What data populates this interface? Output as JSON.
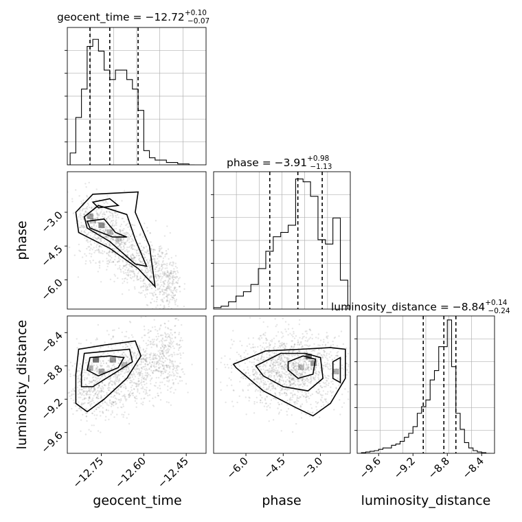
{
  "chart_data": {
    "type": "corner",
    "parameters": [
      "geocent_time",
      "phase",
      "luminosity_distance"
    ],
    "panels": [
      {
        "kind": "histogram",
        "parameter": "geocent_time",
        "title": {
          "name": "geocent_time",
          "median": "−12.72",
          "upper": "+0.10",
          "lower": "−0.07"
        },
        "xlim": [
          -12.87,
          -12.38
        ],
        "bin_edges": [
          -12.88,
          -12.86,
          -12.84,
          -12.82,
          -12.8,
          -12.78,
          -12.76,
          -12.74,
          -12.72,
          -12.7,
          -12.68,
          -12.66,
          -12.64,
          -12.62,
          -12.6,
          -12.58,
          -12.56,
          -12.54,
          -12.52,
          -12.5,
          -12.48,
          -12.46,
          -12.44,
          -12.42
        ],
        "counts": [
          0,
          5,
          20,
          32,
          50,
          53,
          48,
          40,
          36,
          40,
          40,
          36,
          32,
          23,
          6,
          3,
          2,
          2,
          1,
          1,
          0.4,
          0.4,
          0
        ],
        "quantiles": [
          -12.79,
          -12.72,
          -12.62
        ],
        "ylim": [
          0,
          58
        ],
        "grid": true
      },
      {
        "kind": "2d",
        "x": "geocent_time",
        "y": "phase",
        "xlim": [
          -12.87,
          -12.38
        ],
        "ylim": [
          -7.3,
          -1.2
        ],
        "note": "contours of the joint density; samples shown as grey points"
      },
      {
        "kind": "histogram",
        "parameter": "phase",
        "title": {
          "name": "phase",
          "median": "−3.91",
          "upper": "+0.98",
          "lower": "−1.13"
        },
        "xlim": [
          -7.3,
          -1.8
        ],
        "bin_edges": [
          -7.3,
          -7.0,
          -6.7,
          -6.4,
          -6.1,
          -5.8,
          -5.5,
          -5.2,
          -4.9,
          -4.6,
          -4.3,
          -4.0,
          -3.7,
          -3.4,
          -3.1,
          -2.8,
          -2.5,
          -2.2,
          -1.9
        ],
        "counts": [
          1,
          2,
          5,
          9,
          12,
          17,
          28,
          40,
          50,
          53,
          58,
          90,
          88,
          78,
          48,
          45,
          63,
          20
        ],
        "quantiles": [
          -5.04,
          -3.91,
          -2.93
        ],
        "ylim": [
          0,
          95
        ],
        "grid": true
      },
      {
        "kind": "2d",
        "x": "geocent_time",
        "y": "luminosity_distance",
        "xlim": [
          -12.87,
          -12.38
        ],
        "ylim": [
          -9.85,
          -8.2
        ]
      },
      {
        "kind": "2d",
        "x": "phase",
        "y": "luminosity_distance",
        "xlim": [
          -7.3,
          -1.8
        ],
        "ylim": [
          -9.85,
          -8.2
        ]
      },
      {
        "kind": "histogram",
        "parameter": "luminosity_distance",
        "title": {
          "name": "luminosity_distance",
          "median": "−8.84",
          "upper": "+0.14",
          "lower": "−0.24"
        },
        "xlim": [
          -9.85,
          -8.25
        ],
        "bin_edges": [
          -9.85,
          -9.8,
          -9.75,
          -9.7,
          -9.65,
          -9.6,
          -9.55,
          -9.5,
          -9.45,
          -9.4,
          -9.35,
          -9.3,
          -9.25,
          -9.2,
          -9.15,
          -9.1,
          -9.05,
          -9.0,
          -8.95,
          -8.9,
          -8.85,
          -8.8,
          -8.75,
          -8.7,
          -8.65,
          -8.6,
          -8.55,
          -8.5,
          -8.45,
          -8.4,
          -8.35,
          -8.3
        ],
        "counts": [
          0,
          0.5,
          1,
          1.5,
          2,
          3,
          4,
          4,
          6,
          7,
          9,
          12,
          15,
          20,
          30,
          35,
          40,
          55,
          62,
          80,
          80,
          100,
          65,
          30,
          18,
          8,
          4,
          2,
          1,
          0.5,
          0
        ],
        "quantiles": [
          -9.08,
          -8.84,
          -8.7
        ],
        "ylim": [
          0,
          103
        ],
        "grid": true
      }
    ],
    "axis_labels": {
      "x": [
        "geocent_time",
        "phase",
        "luminosity_distance"
      ],
      "y": [
        "phase",
        "luminosity_distance"
      ]
    },
    "ticks": {
      "geocent_time": [
        -12.75,
        -12.6,
        -12.45
      ],
      "geocent_time_labels": [
        "−12.75",
        "−12.60",
        "−12.45"
      ],
      "phase": [
        -6.0,
        -4.5,
        -3.0
      ],
      "phase_labels": [
        "−6.0",
        "−4.5",
        "−3.0"
      ],
      "luminosity_distance": [
        -9.6,
        -9.2,
        -8.8,
        -8.4
      ],
      "luminosity_distance_labels": [
        "−9.6",
        "−9.2",
        "−8.8",
        "−8.4"
      ]
    }
  }
}
